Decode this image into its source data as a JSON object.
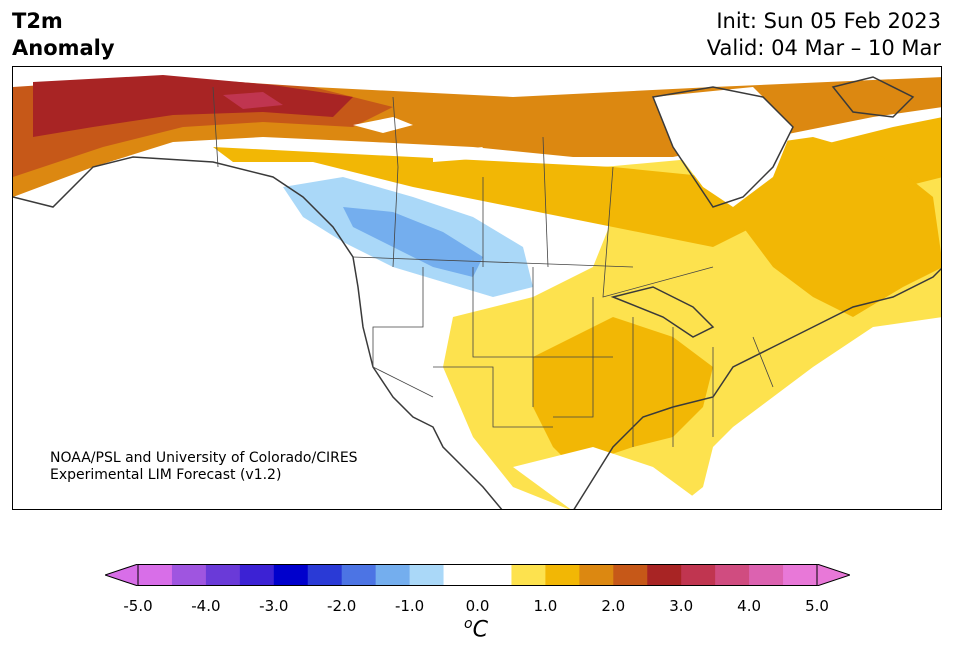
{
  "title": {
    "line1": "T2m",
    "line2": "Anomaly"
  },
  "dates": {
    "init": "Init: Sun 05 Feb 2023",
    "valid": "Valid: 04 Mar – 10 Mar"
  },
  "credit": {
    "line1": "NOAA/PSL and University of Colorado/CIRES",
    "line2": "Experimental LIM Forecast (v1.2)"
  },
  "colorbar": {
    "ticks": [
      "-5.0",
      "-4.0",
      "-3.0",
      "-2.0",
      "-1.0",
      "0.0",
      "1.0",
      "2.0",
      "3.0",
      "4.0",
      "5.0"
    ],
    "unit_symbol": "o",
    "unit_letter": "C",
    "colors": [
      "#d86ee8",
      "#9f55e0",
      "#6a3ad8",
      "#3c22d4",
      "#0000cc",
      "#2a3ad6",
      "#4c74e4",
      "#74aeee",
      "#aad8f8",
      "#ffffff",
      "#ffffff",
      "#fde24e",
      "#f2b705",
      "#dc8811",
      "#c65818",
      "#a82424",
      "#c03550",
      "#d04c80",
      "#dc62b0",
      "#e878d8"
    ],
    "under_color": "#d86ee8",
    "over_color": "#e878d8"
  }
}
